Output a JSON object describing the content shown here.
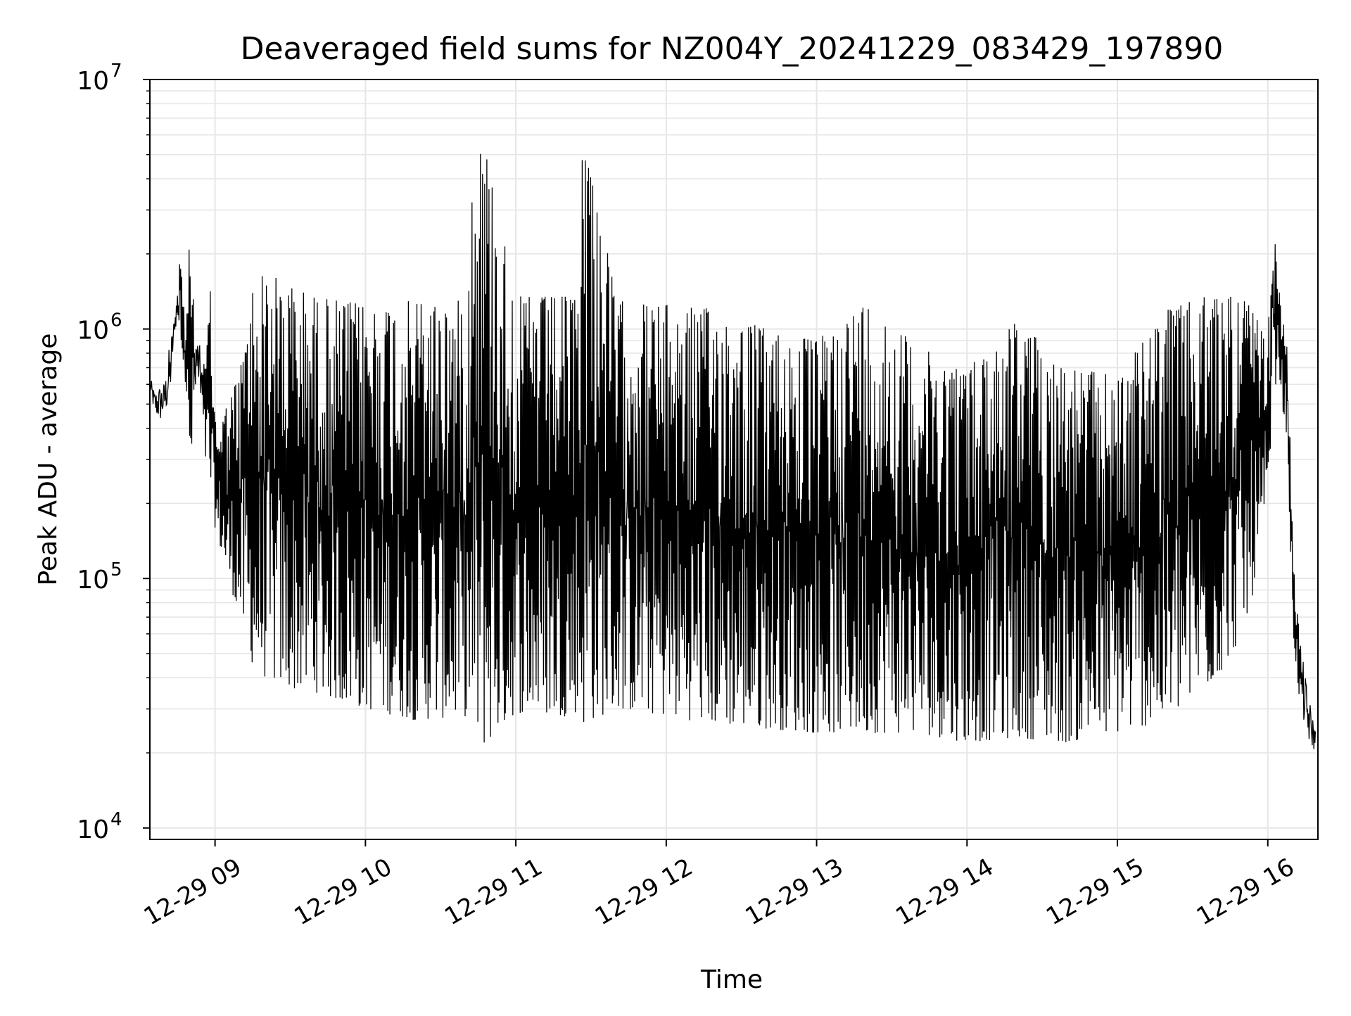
{
  "chart_data": {
    "type": "line",
    "title": "Deaveraged field sums for NZ004Y_20241229_083429_197890",
    "xlabel": "Time",
    "ylabel": "Peak ADU - average",
    "yscale": "log",
    "ylim": [
      9000,
      10000000
    ],
    "y_tick_labels": [
      {
        "value": 10000,
        "base": "10",
        "exp": "4"
      },
      {
        "value": 100000,
        "base": "10",
        "exp": "5"
      },
      {
        "value": 1000000,
        "base": "10",
        "exp": "6"
      },
      {
        "value": 10000000,
        "base": "10",
        "exp": "7"
      }
    ],
    "xlim": [
      "2024-12-29T08:34",
      "2024-12-29T16:20"
    ],
    "x_tick_labels": [
      {
        "time": "2024-12-29T09:00",
        "label": "12-29 09"
      },
      {
        "time": "2024-12-29T10:00",
        "label": "12-29 10"
      },
      {
        "time": "2024-12-29T11:00",
        "label": "12-29 11"
      },
      {
        "time": "2024-12-29T12:00",
        "label": "12-29 12"
      },
      {
        "time": "2024-12-29T13:00",
        "label": "12-29 13"
      },
      {
        "time": "2024-12-29T14:00",
        "label": "12-29 14"
      },
      {
        "time": "2024-12-29T15:00",
        "label": "12-29 15"
      },
      {
        "time": "2024-12-29T16:00",
        "label": "12-29 16"
      }
    ],
    "grid": true,
    "series": [
      {
        "color": "#000000",
        "note_values": "approximate envelope of a dense, noisy time series; y in ADU",
        "x": [
          "2024-12-29T08:34",
          "2024-12-29T08:36",
          "2024-12-29T08:38",
          "2024-12-29T08:40",
          "2024-12-29T08:42",
          "2024-12-29T08:44",
          "2024-12-29T08:46",
          "2024-12-29T08:48",
          "2024-12-29T08:50",
          "2024-12-29T08:52",
          "2024-12-29T08:54",
          "2024-12-29T08:56",
          "2024-12-29T08:58",
          "2024-12-29T09:00",
          "2024-12-29T09:05",
          "2024-12-29T09:10",
          "2024-12-29T09:15",
          "2024-12-29T09:20",
          "2024-12-29T09:30",
          "2024-12-29T09:40",
          "2024-12-29T09:50",
          "2024-12-29T10:00",
          "2024-12-29T10:20",
          "2024-12-29T10:40",
          "2024-12-29T10:43",
          "2024-12-29T10:47",
          "2024-12-29T11:00",
          "2024-12-29T11:20",
          "2024-12-29T11:24",
          "2024-12-29T11:27",
          "2024-12-29T11:40",
          "2024-12-29T12:00",
          "2024-12-29T12:20",
          "2024-12-29T12:40",
          "2024-12-29T13:00",
          "2024-12-29T13:20",
          "2024-12-29T13:40",
          "2024-12-29T14:00",
          "2024-12-29T14:20",
          "2024-12-29T14:40",
          "2024-12-29T15:00",
          "2024-12-29T15:20",
          "2024-12-29T15:40",
          "2024-12-29T15:50",
          "2024-12-29T16:00",
          "2024-12-29T16:02",
          "2024-12-29T16:05",
          "2024-12-29T16:08",
          "2024-12-29T16:10",
          "2024-12-29T16:13",
          "2024-12-29T16:16",
          "2024-12-29T16:19"
        ],
        "y_high": [
          650000,
          560000,
          600000,
          620000,
          900000,
          1150000,
          2100000,
          1100000,
          2400000,
          1050000,
          850000,
          700000,
          1500000,
          450000,
          500000,
          700000,
          1500000,
          1700000,
          1500000,
          1350000,
          1300000,
          1250000,
          1300000,
          1300000,
          5000000,
          6000000,
          1350000,
          1350000,
          1350000,
          7300000,
          1300000,
          1250000,
          1200000,
          1000000,
          900000,
          1300000,
          850000,
          700000,
          1100000,
          700000,
          650000,
          1200000,
          1400000,
          1400000,
          900000,
          2800000,
          1300000,
          800000,
          130000,
          55000,
          35000,
          25000
        ],
        "y_low": [
          550000,
          450000,
          420000,
          450000,
          500000,
          1000000,
          1000000,
          650000,
          210000,
          600000,
          550000,
          300000,
          230000,
          160000,
          100000,
          70000,
          45000,
          40000,
          36000,
          35000,
          32000,
          30000,
          27000,
          28000,
          24000,
          21000,
          29000,
          28000,
          29000,
          26000,
          30000,
          28000,
          26000,
          25000,
          24000,
          24000,
          24000,
          22000,
          23000,
          22000,
          24000,
          27000,
          40000,
          60000,
          150000,
          600000,
          600000,
          300000,
          60000,
          30000,
          22000,
          20000
        ]
      }
    ]
  }
}
